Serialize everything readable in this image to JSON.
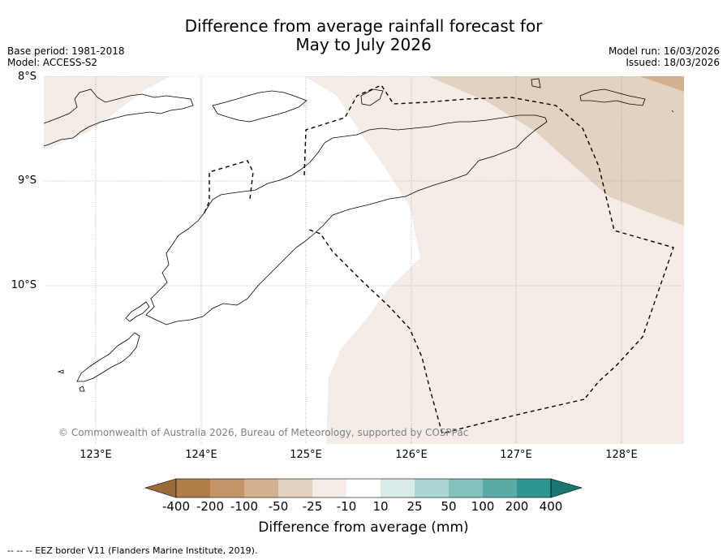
{
  "title": {
    "line1": "Difference from average rainfall forecast for",
    "line2": "May to July 2026"
  },
  "meta": {
    "base_period": "Base period: 1981-2018",
    "model": "Model: ACCESS-S2",
    "model_run": "Model run: 16/03/2026",
    "issued": "Issued: 18/03/2026"
  },
  "axes": {
    "lat_labels": [
      "8°S",
      "9°S",
      "10°S"
    ],
    "lon_labels": [
      "123°E",
      "124°E",
      "125°E",
      "126°E",
      "127°E",
      "128°E"
    ]
  },
  "copyright": "© Commonwealth of Australia 2026, Bureau of Meteorology, supported by COSPPac",
  "colorbar": {
    "title": "Difference from average (mm)",
    "tick_labels": [
      "-400",
      "-200",
      "-100",
      "-50",
      "-25",
      "-10",
      "10",
      "25",
      "50",
      "100",
      "200",
      "400"
    ],
    "colors": {
      "below_400": "#9b6a3a",
      "m400_m200": "#b07d49",
      "m200_m100": "#c29468",
      "m100_m50": "#d3b190",
      "m50_m25": "#e3d2c0",
      "m25_m10": "#f4ede7",
      "m10_10": "#ffffff",
      "10_25": "#d8ebe9",
      "25_50": "#acd6d3",
      "50_100": "#83c1bd",
      "100_200": "#59aba6",
      "200_400": "#2e9590",
      "above_400": "#1b7671"
    }
  },
  "footnote": "--  --  -- EEZ border V11 (Flanders Marine Institute, 2019)."
}
